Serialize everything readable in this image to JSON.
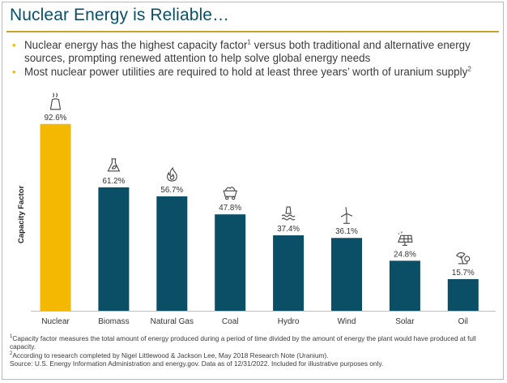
{
  "slide": {
    "title": "Nuclear Energy is Reliable…",
    "bullets": [
      {
        "text": "Nuclear energy has the highest capacity factor",
        "sup": "1",
        "tail": " versus both traditional and alternative energy sources, prompting renewed attention to help solve global energy needs"
      },
      {
        "text": "Most nuclear power utilities are required to hold at least three years’ worth of uranium supply",
        "sup": "2",
        "tail": ""
      }
    ],
    "bullet_glyph": "•"
  },
  "chart_data": {
    "type": "bar",
    "ylabel": "Capacity Factor",
    "xlabel": "",
    "ylim": [
      0,
      100
    ],
    "grid": false,
    "categories": [
      "Nuclear",
      "Biomass",
      "Natural Gas",
      "Coal",
      "Hydro",
      "Wind",
      "Solar",
      "Oil"
    ],
    "values": [
      92.6,
      61.2,
      56.7,
      47.8,
      37.4,
      36.1,
      24.8,
      15.7
    ],
    "data_labels": [
      "92.6%",
      "61.2%",
      "56.7%",
      "47.8%",
      "37.4%",
      "36.1%",
      "24.8%",
      "15.7%"
    ],
    "icons": [
      "cooling-tower-icon",
      "biomass-flask-icon",
      "flame-icon",
      "coal-cart-icon",
      "hydro-dam-icon",
      "wind-turbine-icon",
      "solar-panel-icon",
      "oil-pump-icon"
    ],
    "highlight_index": 0,
    "colors": {
      "highlight": "#f5b800",
      "bar": "#0a4f66",
      "axis": "#bfbfbf",
      "label": "#333333"
    }
  },
  "footnotes": {
    "fn1_sup": "1",
    "fn1": "Capacity factor measures the total amount of energy produced during a period of time divided by the amount of energy the plant would have produced at full capacity.",
    "fn2_sup": "2",
    "fn2": "According to research completed by Nigel Littlewood & Jackson Lee, May 2018 Research Note (Uranium).",
    "source": "Source: U.S. Energy Information Administration and energy.gov. Data as of 12/31/2022. Included for illustrative purposes only."
  }
}
